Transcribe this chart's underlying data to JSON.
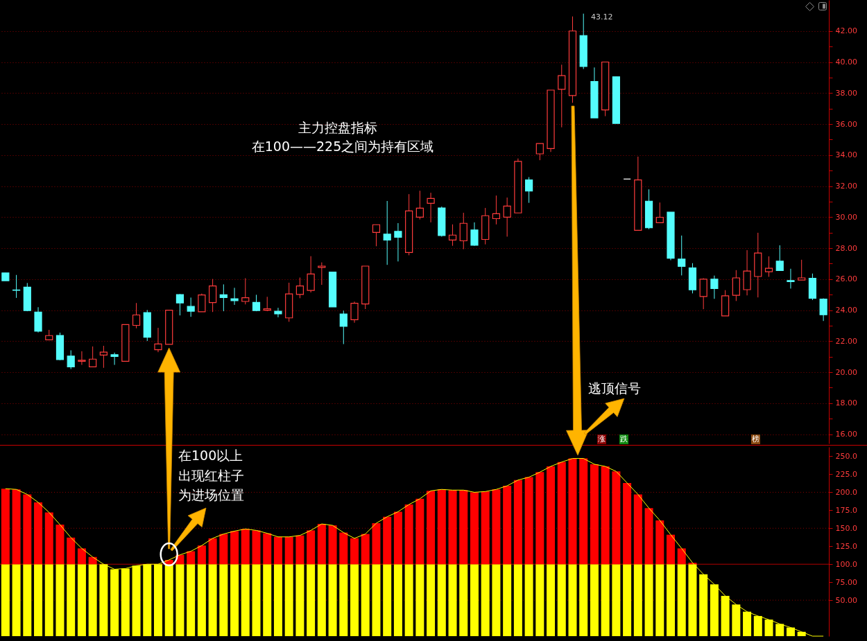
{
  "chart_data": [
    {
      "type": "candlestick",
      "categories": [
        null,
        null,
        null,
        null,
        null,
        null,
        null,
        null,
        null,
        null,
        null,
        null,
        null,
        null,
        null,
        null,
        null,
        null,
        null,
        null,
        null,
        null,
        null,
        null,
        null,
        null,
        null,
        null,
        null,
        null,
        null,
        null,
        null,
        null,
        null,
        null,
        null,
        null,
        null,
        null,
        null,
        null,
        null,
        null,
        null,
        null,
        null,
        null,
        null,
        null,
        null,
        null,
        null,
        null,
        null,
        null,
        null,
        null,
        null,
        null,
        null,
        null,
        null,
        null,
        null,
        null,
        null,
        null,
        null,
        null,
        null,
        null,
        null,
        null,
        null,
        null
      ],
      "ohlc": [
        [
          26.4,
          26.4,
          25.9,
          25.9
        ],
        [
          25.3,
          26.27,
          24.79,
          25.28
        ],
        [
          25.48,
          25.75,
          23.93,
          23.97
        ],
        [
          23.88,
          24.19,
          22.56,
          22.64
        ],
        [
          22.09,
          22.73,
          22.09,
          22.36
        ],
        [
          22.37,
          22.55,
          20.77,
          20.81
        ],
        [
          21.04,
          21.41,
          20.2,
          20.34
        ],
        [
          20.7,
          21.35,
          20.47,
          20.77
        ],
        [
          20.34,
          21.66,
          20.34,
          20.84
        ],
        [
          21.1,
          21.7,
          20.28,
          21.29
        ],
        [
          21.13,
          21.26,
          20.47,
          21.01
        ],
        [
          20.7,
          23.07,
          20.7,
          23.07
        ],
        [
          23.02,
          24.46,
          22.83,
          23.69
        ],
        [
          23.84,
          24.01,
          22.01,
          22.25
        ],
        [
          21.45,
          22.86,
          21.29,
          21.82
        ],
        [
          21.8,
          24.0,
          21.8,
          24.0
        ],
        [
          25.0,
          25.04,
          23.66,
          24.46
        ],
        [
          24.24,
          24.81,
          23.57,
          23.93
        ],
        [
          23.9,
          25.07,
          23.9,
          24.98
        ],
        [
          24.49,
          26.01,
          23.88,
          25.56
        ],
        [
          24.99,
          25.66,
          23.93,
          24.81
        ],
        [
          24.73,
          25.44,
          24.34,
          24.61
        ],
        [
          24.56,
          26.06,
          24.37,
          24.8
        ],
        [
          24.5,
          24.99,
          23.93,
          23.97
        ],
        [
          24.0,
          24.86,
          23.93,
          24.09
        ],
        [
          23.93,
          24.15,
          23.54,
          23.76
        ],
        [
          23.5,
          25.77,
          23.25,
          25.05
        ],
        [
          25.01,
          26.1,
          24.77,
          25.56
        ],
        [
          25.27,
          27.48,
          25.14,
          26.33
        ],
        [
          26.76,
          27.08,
          25.63,
          26.84
        ],
        [
          26.46,
          26.46,
          24.21,
          24.21
        ],
        [
          23.75,
          23.97,
          21.81,
          22.96
        ],
        [
          23.38,
          24.55,
          23.19,
          24.44
        ],
        [
          24.4,
          26.84,
          24.07,
          26.84
        ],
        [
          29.01,
          29.51,
          28.12,
          29.51
        ],
        [
          28.9,
          31.04,
          26.92,
          28.52
        ],
        [
          29.08,
          29.61,
          27.14,
          28.7
        ],
        [
          27.72,
          31.48,
          27.54,
          30.4
        ],
        [
          30.0,
          31.7,
          29.85,
          30.58
        ],
        [
          30.89,
          31.57,
          29.66,
          31.2
        ],
        [
          30.59,
          30.68,
          28.74,
          28.81
        ],
        [
          28.52,
          29.53,
          28.15,
          28.84
        ],
        [
          28.47,
          30.28,
          27.93,
          29.6
        ],
        [
          29.17,
          29.66,
          28.15,
          28.19
        ],
        [
          28.56,
          30.59,
          28.24,
          30.09
        ],
        [
          29.9,
          31.39,
          29.53,
          30.22
        ],
        [
          30.0,
          31.26,
          28.74,
          30.71
        ],
        [
          30.27,
          33.78,
          30.27,
          33.59
        ],
        [
          32.4,
          32.58,
          30.92,
          31.68
        ],
        [
          34.08,
          34.74,
          33.67,
          34.74
        ],
        [
          34.42,
          38.19,
          34.2,
          38.19
        ],
        [
          38.24,
          39.83,
          35.79,
          39.12
        ],
        [
          37.84,
          42.94,
          37.37,
          42.0
        ],
        [
          41.71,
          43.12,
          39.55,
          39.71
        ],
        [
          38.74,
          39.65,
          36.4,
          36.4
        ],
        [
          36.91,
          40.0,
          36.51,
          40.0
        ],
        [
          39.05,
          39.05,
          36.04,
          36.04
        ],
        [
          32.45,
          32.45,
          32.45,
          32.45
        ],
        [
          29.15,
          33.9,
          29.15,
          32.4
        ],
        [
          31.03,
          31.79,
          29.22,
          29.31
        ],
        [
          29.64,
          30.94,
          29.64,
          29.99
        ],
        [
          30.32,
          30.32,
          27.22,
          27.35
        ],
        [
          27.29,
          28.81,
          26.24,
          26.82
        ],
        [
          26.72,
          27.03,
          25.08,
          25.31
        ],
        [
          24.88,
          26.06,
          24.06,
          26.0
        ],
        [
          26.0,
          26.23,
          24.73,
          25.39
        ],
        [
          23.63,
          25.29,
          23.63,
          24.92
        ],
        [
          24.96,
          26.58,
          24.59,
          26.08
        ],
        [
          25.32,
          27.87,
          24.95,
          26.52
        ],
        [
          26.17,
          28.99,
          24.82,
          27.68
        ],
        [
          26.48,
          27.47,
          26.15,
          26.7
        ],
        [
          27.16,
          28.18,
          26.55,
          26.55
        ],
        [
          25.91,
          26.67,
          25.39,
          25.84
        ],
        [
          25.94,
          27.25,
          25.94,
          26.08
        ],
        [
          26.05,
          26.36,
          24.65,
          24.77
        ],
        [
          24.71,
          24.76,
          23.3,
          23.7
        ]
      ],
      "colors": [
        "#54fcfc",
        "#54fcfc",
        "#54fcfc",
        "#54fcfc",
        "#ff3c3c",
        "#54fcfc",
        "#54fcfc",
        "#ff3c3c",
        "#ff3c3c",
        "#ff3c3c",
        "#54fcfc",
        "#ff3c3c",
        "#ff3c3c",
        "#54fcfc",
        "#ff3c3c",
        "#ff3c3c",
        "#54fcfc",
        "#54fcfc",
        "#ff3c3c",
        "#ff3c3c",
        "#54fcfc",
        "#54fcfc",
        "#ff3c3c",
        "#54fcfc",
        "#ff3c3c",
        "#54fcfc",
        "#ff3c3c",
        "#ff3c3c",
        "#ff3c3c",
        "#ff3c3c",
        "#54fcfc",
        "#54fcfc",
        "#ff3c3c",
        "#ff3c3c",
        "#ff3c3c",
        "#54fcfc",
        "#54fcfc",
        "#ff3c3c",
        "#ff3c3c",
        "#ff3c3c",
        "#54fcfc",
        "#ff3c3c",
        "#ff3c3c",
        "#54fcfc",
        "#ff3c3c",
        "#ff3c3c",
        "#ff3c3c",
        "#ff3c3c",
        "#54fcfc",
        "#ff3c3c",
        "#ff3c3c",
        "#ff3c3c",
        "#ff3c3c",
        "#54fcfc",
        "#54fcfc",
        "#ff3c3c",
        "#54fcfc",
        "#ffffff",
        "#ff3c3c",
        "#54fcfc",
        "#ff3c3c",
        "#54fcfc",
        "#54fcfc",
        "#54fcfc",
        "#ff3c3c",
        "#54fcfc",
        "#ff3c3c",
        "#ff3c3c",
        "#ff3c3c",
        "#ff3c3c",
        "#ff3c3c",
        "#54fcfc",
        "#54fcfc",
        "#ff3c3c",
        "#54fcfc",
        "#54fcfc"
      ],
      "ylim": [
        15.4,
        44.0
      ],
      "yticks": [
        {
          "value": 16,
          "label": "16.00"
        },
        {
          "value": 17,
          "label": null
        },
        {
          "value": 18,
          "label": "18.00"
        },
        {
          "value": 19,
          "label": null
        },
        {
          "value": 20,
          "label": "20.00"
        },
        {
          "value": 21,
          "label": null
        },
        {
          "value": 22,
          "label": "22.00"
        },
        {
          "value": 23,
          "label": null
        },
        {
          "value": 24,
          "label": "24.00"
        },
        {
          "value": 25,
          "label": null
        },
        {
          "value": 26,
          "label": "26.00"
        },
        {
          "value": 27,
          "label": null
        },
        {
          "value": 28,
          "label": "28.00"
        },
        {
          "value": 29,
          "label": null
        },
        {
          "value": 30,
          "label": "30.00"
        },
        {
          "value": 31,
          "label": null
        },
        {
          "value": 32,
          "label": "32.00"
        },
        {
          "value": 33,
          "label": null
        },
        {
          "value": 34,
          "label": "34.00"
        },
        {
          "value": 35,
          "label": null
        },
        {
          "value": 36,
          "label": "36.00"
        },
        {
          "value": 37,
          "label": null
        },
        {
          "value": 38,
          "label": "38.00"
        },
        {
          "value": 39,
          "label": null
        },
        {
          "value": 40,
          "label": "40.00"
        },
        {
          "value": 41,
          "label": null
        },
        {
          "value": 42,
          "label": "42.00"
        }
      ],
      "grid": "y",
      "tick_labels": "y",
      "annotations": [
        "主力控盘指标",
        "在100——225之间为持有区域",
        "43.12",
        "逃顶信号",
        "涨",
        "跌",
        "榜"
      ]
    },
    {
      "type": "bar",
      "stacked": true,
      "categories": [
        null,
        null,
        null,
        null,
        null,
        null,
        null,
        null,
        null,
        null,
        null,
        null,
        null,
        null,
        null,
        null,
        null,
        null,
        null,
        null,
        null,
        null,
        null,
        null,
        null,
        null,
        null,
        null,
        null,
        null,
        null,
        null,
        null,
        null,
        null,
        null,
        null,
        null,
        null,
        null,
        null,
        null,
        null,
        null,
        null,
        null,
        null,
        null,
        null,
        null,
        null,
        null,
        null,
        null,
        null,
        null,
        null,
        null,
        null,
        null,
        null,
        null,
        null,
        null,
        null,
        null,
        null,
        null,
        null,
        null,
        null,
        null,
        null,
        null,
        null,
        null
      ],
      "series": [
        {
          "color": "#ffff00",
          "values": [
            100,
            100,
            100,
            100,
            100,
            100,
            100,
            100,
            100,
            100,
            93,
            94,
            98,
            100,
            100,
            100,
            100,
            100,
            100,
            100,
            100,
            100,
            100,
            100,
            100,
            100,
            100,
            100,
            100,
            100,
            100,
            100,
            100,
            100,
            100,
            100,
            100,
            100,
            100,
            100,
            100,
            100,
            100,
            100,
            100,
            100,
            100,
            100,
            100,
            100,
            100,
            100,
            100,
            100,
            100,
            100,
            100,
            100,
            100,
            100,
            100,
            100,
            100,
            100,
            86,
            72,
            56,
            44,
            34,
            28,
            23,
            17,
            12,
            6,
            null,
            null
          ]
        },
        {
          "color": "#ff0000",
          "values": [
            105,
            104,
            97,
            86,
            72,
            55,
            37,
            22,
            10,
            null,
            null,
            null,
            null,
            null,
            null,
            6,
            13,
            18,
            26,
            36,
            42,
            46,
            49,
            47,
            43,
            38,
            38,
            40,
            47,
            56,
            54,
            44,
            36,
            42,
            57,
            66,
            73,
            83,
            91,
            102,
            104,
            103,
            103,
            100,
            101,
            104,
            109,
            117,
            121,
            128,
            136,
            142,
            147,
            147,
            139,
            136,
            129,
            113,
            97,
            78,
            61,
            41,
            22,
            2,
            null,
            null,
            null,
            null,
            null,
            null,
            null,
            null,
            null,
            null,
            null,
            null
          ]
        },
        {
          "type": "line",
          "color": "#ffff00",
          "values": [
            205,
            204,
            197,
            186,
            172,
            155,
            137,
            122,
            110,
            100,
            93,
            94,
            98,
            100,
            100,
            106,
            113,
            118,
            126,
            136,
            142,
            146,
            149,
            147,
            143,
            138,
            138,
            140,
            147,
            156,
            154,
            144,
            136,
            142,
            157,
            166,
            173,
            183,
            191,
            202,
            204,
            203,
            203,
            200,
            201,
            204,
            209,
            217,
            221,
            228,
            236,
            242,
            247,
            247,
            239,
            236,
            229,
            213,
            197,
            178,
            161,
            141,
            122,
            102,
            86,
            72,
            56,
            44,
            34,
            28,
            23,
            17,
            12,
            6,
            0,
            0
          ]
        }
      ],
      "ylim": [
        0,
        263
      ],
      "yticks": [
        {
          "value": 50,
          "label": "50.00"
        },
        {
          "value": 75,
          "label": "75.00"
        },
        {
          "value": 100,
          "label": "100.0"
        },
        {
          "value": 125,
          "label": "125.0"
        },
        {
          "value": 150,
          "label": "150.0"
        },
        {
          "value": 175,
          "label": "175.0"
        },
        {
          "value": 200,
          "label": "200.0"
        },
        {
          "value": 225,
          "label": "225.0"
        },
        {
          "value": 250,
          "label": "250.0"
        }
      ],
      "ref_lines": [
        {
          "axis": "y",
          "value": 50,
          "color": "#8c0000",
          "line_style": "dotted"
        },
        {
          "axis": "y",
          "value": 100,
          "color": "#b40000",
          "line_style": "solid"
        },
        {
          "axis": "y",
          "value": 150,
          "color": "#8c0000",
          "line_style": "dotted"
        },
        {
          "axis": "y",
          "value": 200,
          "color": "#8c0000",
          "line_style": "dotted"
        }
      ],
      "tick_labels": "y",
      "annotations": [
        "在100以上",
        "出现红柱子",
        "为进场位置"
      ]
    }
  ]
}
